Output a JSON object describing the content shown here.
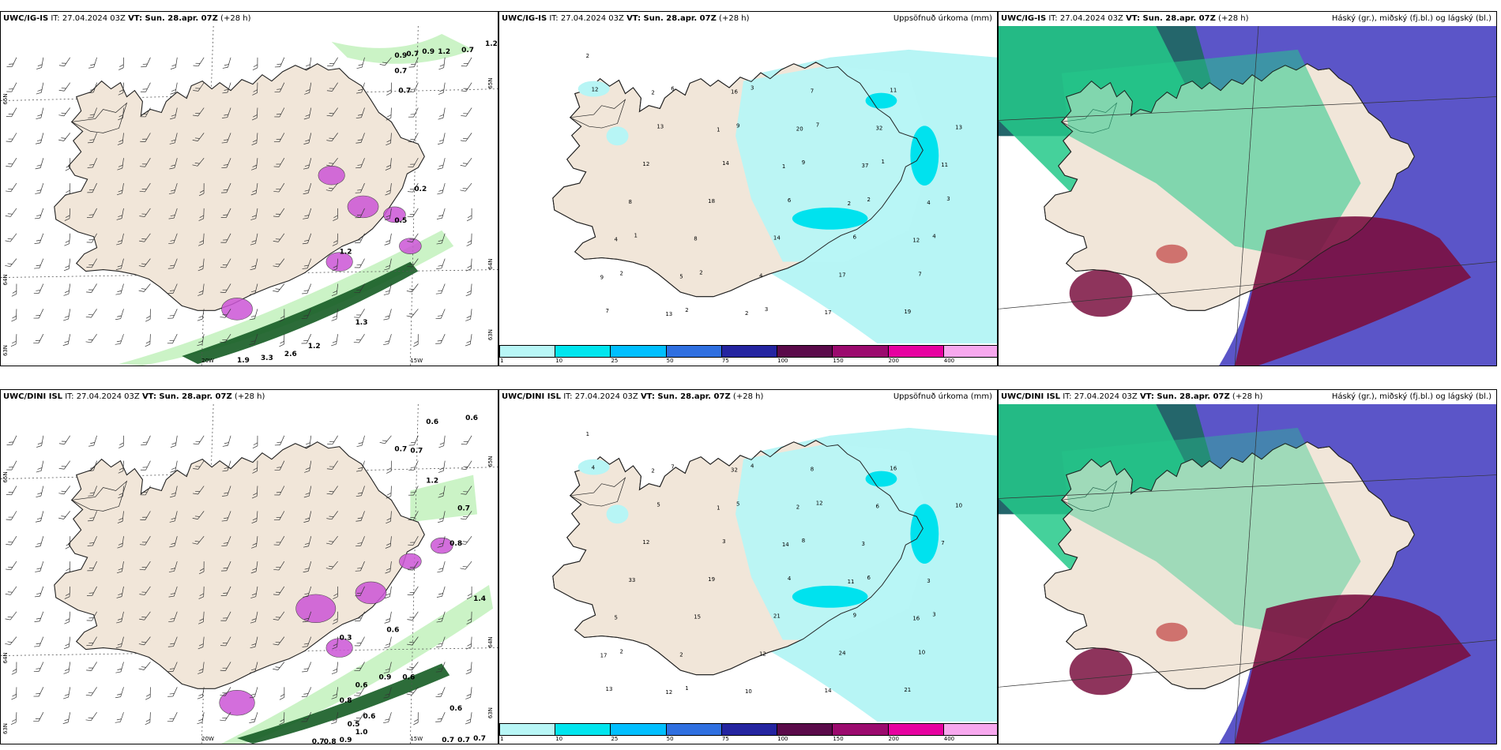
{
  "panels": [
    {
      "model": "UWC/IG-IS",
      "it": "IT: 27.04.2024 03Z",
      "vt": "VT: Sun. 28.apr. 07Z",
      "lead": "(+28 h)",
      "right": "",
      "lon_labels": [
        "20W",
        "15W"
      ],
      "lat_labels": [
        "65N",
        "64N",
        "63N"
      ],
      "labels": [
        "0.9",
        "0.7",
        "0.9",
        "1.2",
        "0.7",
        "1.2",
        "0.7",
        "0.7",
        "0.2",
        "0.5",
        "1.2",
        "1.3",
        "2.6",
        "3.3",
        "1.9",
        "1.2"
      ]
    },
    {
      "model": "UWC/IG-IS",
      "it": "IT: 27.04.2024 03Z",
      "vt": "VT: Sun. 28.apr. 07Z",
      "lead": "(+28 h)",
      "right": "Uppsöfnuð úrkoma (mm)",
      "labels": [
        "2",
        "2",
        "1",
        "1",
        "2",
        "12",
        "9",
        "13",
        "16",
        "20",
        "37",
        "4",
        "4",
        "5",
        "2",
        "7",
        "32",
        "11",
        "8",
        "8",
        "4",
        "17",
        "11",
        "13",
        "12",
        "18",
        "14",
        "17",
        "19",
        "12",
        "13",
        "14",
        "6",
        "6",
        "7",
        "7",
        "6",
        "9",
        "9",
        "2",
        "4",
        "2",
        "2",
        "3",
        "7",
        "1",
        "3",
        "1",
        "2",
        "3"
      ]
    },
    {
      "model": "UWC/IG-IS",
      "it": "IT: 27.04.2024 03Z",
      "vt": "VT: Sun. 28.apr. 07Z",
      "lead": "(+28 h)",
      "right": "Háský (gr.), miðský (fj.bl.) og lágský (bl.)"
    },
    {
      "model": "UWC/DINI ISL",
      "it": "IT: 27.04.2024 03Z",
      "vt": "VT: Sun. 28.apr. 07Z",
      "lead": "(+28 h)",
      "right": "",
      "lon_labels": [
        "20W",
        "15W"
      ],
      "lat_labels": [
        "65N",
        "64N",
        "63N"
      ],
      "labels": [
        "0.6",
        "0.6",
        "0.7",
        "0.7",
        "1.2",
        "0.7",
        "0.8",
        "1.4",
        "0.3",
        "0.6",
        "0.6",
        "0.6",
        "0.9",
        "0.8",
        "0.6",
        "0.5",
        "1.0",
        "0.9",
        "0.8",
        "0.7",
        "0.7",
        "0.7",
        "0.7",
        "0.6"
      ]
    },
    {
      "model": "UWC/DINI ISL",
      "it": "IT: 27.04.2024 03Z",
      "vt": "VT: Sun. 28.apr. 07Z",
      "lead": "(+28 h)",
      "right": "Uppsöfnuð úrkoma (mm)",
      "labels": [
        "1",
        "2",
        "1",
        "14",
        "11",
        "16",
        "17",
        "12",
        "32",
        "2",
        "3",
        "3",
        "5",
        "2",
        "10",
        "8",
        "6",
        "7",
        "33",
        "15",
        "12",
        "14",
        "16",
        "10",
        "12",
        "19",
        "21",
        "24",
        "21",
        "4",
        "5",
        "3",
        "4",
        "9",
        "10",
        "13",
        "7",
        "5",
        "8",
        "6",
        "3",
        "2",
        "1",
        "4",
        "12"
      ]
    },
    {
      "model": "UWC/DINI ISL",
      "it": "IT: 27.04.2024 03Z",
      "vt": "VT: Sun. 28.apr. 07Z",
      "lead": "(+28 h)",
      "right": "Háský (gr.), miðský (fj.bl.) og lágský (bl.)"
    }
  ],
  "colorbar": {
    "labels": [
      "1",
      "10",
      "25",
      "50",
      "75",
      "100",
      "150",
      "200",
      "400"
    ],
    "colors": [
      "#b8f6f6",
      "#00e5ee",
      "#00bfff",
      "#2f6fe0",
      "#2424a0",
      "#5a0a4a",
      "#9b0a6e",
      "#e600a0",
      "#f7a8ee"
    ]
  },
  "colors": {
    "land": "#f1e6d9",
    "sea": "#ffffff",
    "precip_light": "#b7f5f5",
    "precip_mid": "#00e2ee",
    "cloud_high": "#25c98a",
    "cloud_mid": "#5b55c8",
    "cloud_low": "#7a1040",
    "cloud_dark_sea": "#24666b",
    "wind_green_light": "#c5f2c0",
    "wind_green_dark": "#155c24",
    "wind_violet": "#cc55d6"
  }
}
